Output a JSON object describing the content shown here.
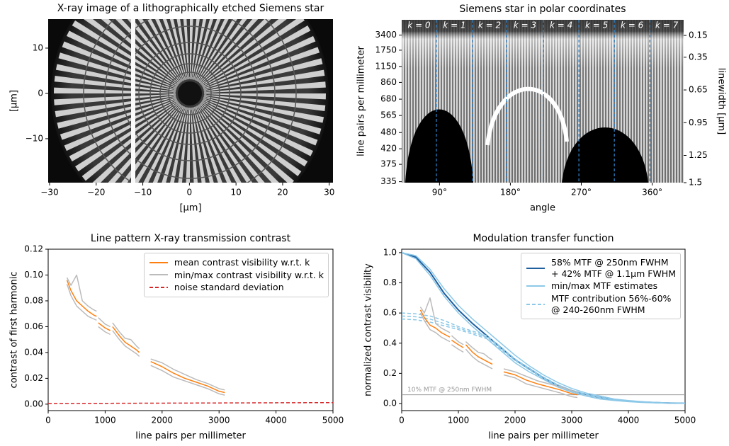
{
  "chart_data": [
    {
      "type": "image",
      "title": "X-ray image of a lithographically etched Siemens star",
      "xlabel": "[µm]",
      "ylabel": "[µm]",
      "xlim": [
        -30.3,
        30.8
      ],
      "ylim": [
        -19.7,
        16.4
      ],
      "xticks": [
        {
          "value": -30,
          "label": "−30"
        },
        {
          "value": -20,
          "label": "−20"
        },
        {
          "value": -10,
          "label": "−10"
        },
        0,
        10,
        20,
        30
      ],
      "yticks": [
        {
          "value": -10,
          "label": "−10"
        },
        0,
        10
      ]
    },
    {
      "type": "polar_image",
      "title": "Siemens star in polar coordinates",
      "xlabel": "angle",
      "ylabel": "line pairs per millimeter",
      "y2label": "linewidth [µm]",
      "xlim": [
        42,
        400
      ],
      "xticks": [
        {
          "value": 90,
          "label": "90°"
        },
        {
          "value": 180,
          "label": "180°"
        },
        {
          "value": 270,
          "label": "270°"
        },
        {
          "value": 360,
          "label": "360°"
        }
      ],
      "ylim": [
        333,
        71429
      ],
      "yscale": "reciprocal",
      "yticks": [
        335,
        375,
        420,
        480,
        565,
        680,
        860,
        1150,
        1750,
        3400
      ],
      "y2lim": [
        1.5,
        0.007
      ],
      "y2ticks": [
        0.15,
        0.35,
        0.65,
        0.95,
        1.25,
        1.5
      ],
      "vlines": {
        "color": "#2f7fc1",
        "values": [
          86,
          132,
          175,
          222,
          267,
          312,
          357
        ]
      },
      "annotations": [
        "k = 0",
        "k = 1",
        "k = 2",
        "k = 3",
        "k = 4",
        "k = 5",
        "k = 6",
        "k = 7"
      ]
    },
    {
      "type": "line",
      "title": "Line pattern X-ray transmission contrast",
      "xlabel": "line pairs per millimeter",
      "ylabel": "contrast of first harmonic",
      "xlim": [
        0,
        5000
      ],
      "xticks": [
        0,
        1000,
        2000,
        3000,
        4000,
        5000
      ],
      "ylim": [
        -0.005,
        0.12
      ],
      "yticks": [
        {
          "value": 0,
          "label": "0.00"
        },
        {
          "value": 0.02,
          "label": "0.02"
        },
        {
          "value": 0.04,
          "label": "0.04"
        },
        {
          "value": 0.06,
          "label": "0.06"
        },
        {
          "value": 0.08,
          "label": "0.08"
        },
        {
          "value": 0.1,
          "label": "0.10"
        },
        {
          "value": 0.12,
          "label": "0.12"
        }
      ],
      "legend": "upper right",
      "series": [
        {
          "name": "mean contrast visibility w.r.t. k",
          "color": "#ff7f0e",
          "x": [
            330,
            400,
            500,
            600,
            700,
            800,
            850,
            860,
            880,
            1000,
            1090,
            1110,
            1130,
            1250,
            1350,
            1450,
            1550,
            1600,
            1700,
            1800,
            2000,
            2200,
            2400,
            2600,
            2800,
            3000,
            3100
          ],
          "values": [
            0.096,
            0.088,
            0.08,
            0.076,
            0.072,
            0.069,
            0.068,
            null,
            0.063,
            0.059,
            0.057,
            null,
            0.06,
            0.053,
            0.048,
            0.045,
            0.042,
            0.04,
            null,
            0.033,
            0.029,
            0.024,
            0.02,
            0.017,
            0.014,
            0.01,
            0.009
          ]
        },
        {
          "name": "min/max contrast visibility w.r.t. k",
          "color": "#bbbbbb",
          "x": [
            330,
            400,
            500,
            600,
            700,
            800,
            850,
            860,
            880,
            1000,
            1090,
            1110,
            1130,
            1250,
            1350,
            1450,
            1550,
            1600,
            1700,
            1800,
            2000,
            2200,
            2400,
            2600,
            2800,
            3000,
            3100
          ],
          "curves": [
            [
              0.093,
              0.084,
              0.076,
              0.072,
              0.068,
              0.066,
              0.065,
              null,
              0.06,
              0.056,
              0.054,
              null,
              0.057,
              0.05,
              0.045,
              0.042,
              0.039,
              0.037,
              null,
              0.03,
              0.026,
              0.021,
              0.018,
              0.015,
              0.012,
              0.008,
              0.007
            ],
            [
              0.098,
              0.092,
              0.1,
              0.08,
              0.076,
              0.073,
              0.072,
              null,
              0.067,
              0.062,
              0.06,
              null,
              0.063,
              0.056,
              0.051,
              0.05,
              0.045,
              0.043,
              null,
              0.035,
              0.032,
              0.027,
              0.023,
              0.019,
              0.016,
              0.012,
              0.011
            ]
          ]
        },
        {
          "name": "noise standard deviation",
          "color": "#d62728",
          "style": "dashed",
          "x": [
            0,
            5000
          ],
          "values": [
            0.0005,
            0.0012
          ]
        }
      ]
    },
    {
      "type": "line",
      "title": "Modulation transfer function",
      "xlabel": "line pairs per millimeter",
      "ylabel": "normalized contrast visibility",
      "xlim": [
        0,
        5000
      ],
      "xticks": [
        0,
        1000,
        2000,
        3000,
        4000,
        5000
      ],
      "ylim": [
        -0.047,
        1.023
      ],
      "yticks": [
        {
          "value": 0,
          "label": "0.0"
        },
        {
          "value": 0.2,
          "label": "0.2"
        },
        {
          "value": 0.4,
          "label": "0.4"
        },
        {
          "value": 0.6,
          "label": "0.6"
        },
        {
          "value": 0.8,
          "label": "0.8"
        },
        {
          "value": 1,
          "label": "1.0"
        }
      ],
      "legend": "upper right",
      "hline": {
        "value": 0.058,
        "label": "10% MTF @ 250nm FWHM",
        "color": "#999999"
      },
      "series": [
        {
          "name": "58% MTF @ 250nm FWHM\n+ 42% MTF @ 1.1µm FWHM",
          "color": "#1f5f9f",
          "x": [
            0,
            250,
            500,
            750,
            1000,
            1250,
            1500,
            1750,
            2000,
            2250,
            2500,
            2750,
            3000,
            3250,
            3500,
            3750,
            4000,
            4250,
            4500,
            4750,
            5000
          ],
          "values": [
            1.0,
            0.97,
            0.87,
            0.73,
            0.62,
            0.53,
            0.45,
            0.37,
            0.29,
            0.23,
            0.17,
            0.12,
            0.085,
            0.06,
            0.04,
            0.025,
            0.015,
            0.01,
            0.006,
            0.003,
            0.002
          ]
        },
        {
          "name": "min/max MTF estimates",
          "color": "#8cc8e8",
          "x": [
            0,
            250,
            500,
            750,
            1000,
            1250,
            1500,
            1750,
            2000,
            2250,
            2500,
            2750,
            3000,
            3250,
            3500,
            3750,
            4000,
            4250,
            4500,
            4750,
            5000
          ],
          "curves": [
            [
              1.0,
              0.96,
              0.85,
              0.71,
              0.6,
              0.51,
              0.43,
              0.35,
              0.27,
              0.21,
              0.16,
              0.11,
              0.075,
              0.05,
              0.03,
              0.02,
              0.012,
              0.007,
              0.004,
              0.002,
              0.001
            ],
            [
              1.0,
              0.98,
              0.89,
              0.76,
              0.65,
              0.56,
              0.48,
              0.4,
              0.32,
              0.25,
              0.19,
              0.14,
              0.1,
              0.07,
              0.05,
              0.03,
              0.02,
              0.012,
              0.007,
              0.004,
              0.002
            ]
          ]
        },
        {
          "name": "MTF contribution 56%-60%\n@ 240-260nm FWHM",
          "color": "#8cc8e8",
          "style": "dashed",
          "x": [
            0,
            250,
            500,
            750,
            1000,
            1250,
            1500,
            1750,
            2000,
            2250,
            2500,
            2750,
            3000,
            3250,
            3500,
            3750,
            4000,
            4250,
            4500,
            4750,
            5000
          ],
          "curves": [
            [
              0.6,
              0.595,
              0.58,
              0.55,
              0.51,
              0.48,
              0.45,
              0.375,
              0.295,
              0.235,
              0.175,
              0.125,
              0.088,
              0.062,
              0.041,
              0.026,
              0.016,
              0.01,
              0.006,
              0.003,
              0.002
            ],
            [
              0.58,
              0.575,
              0.56,
              0.53,
              0.5,
              0.47,
              0.44,
              0.37,
              0.29,
              0.23,
              0.17,
              0.12,
              0.085,
              0.06,
              0.04,
              0.025,
              0.015,
              0.01,
              0.006,
              0.003,
              0.002
            ],
            [
              0.56,
              0.555,
              0.54,
              0.515,
              0.49,
              0.46,
              0.43,
              0.36,
              0.285,
              0.225,
              0.165,
              0.115,
              0.082,
              0.058,
              0.038,
              0.024,
              0.014,
              0.009,
              0.005,
              0.003,
              0.002
            ]
          ]
        },
        {
          "color": "#bbbbbb",
          "x": [
            330,
            400,
            500,
            600,
            700,
            800,
            850,
            860,
            880,
            1000,
            1090,
            1110,
            1130,
            1250,
            1350,
            1450,
            1550,
            1600,
            1700,
            1800,
            2000,
            2200,
            2400,
            2600,
            2800,
            3000,
            3100
          ],
          "curves": [
            [
              0.6,
              0.55,
              0.49,
              0.47,
              0.44,
              0.42,
              0.41,
              null,
              0.39,
              0.36,
              0.34,
              null,
              0.36,
              0.31,
              0.28,
              0.26,
              0.24,
              0.23,
              null,
              0.19,
              0.17,
              0.13,
              0.11,
              0.09,
              0.07,
              0.045,
              0.04
            ],
            [
              0.64,
              0.6,
              0.7,
              0.53,
              0.5,
              0.48,
              0.47,
              null,
              0.45,
              0.41,
              0.39,
              null,
              0.41,
              0.37,
              0.34,
              0.33,
              0.3,
              0.29,
              null,
              0.23,
              0.21,
              0.18,
              0.15,
              0.13,
              0.11,
              0.085,
              0.075
            ]
          ]
        },
        {
          "color": "#ff7f0e",
          "x": [
            330,
            400,
            500,
            600,
            700,
            800,
            850,
            860,
            880,
            1000,
            1090,
            1110,
            1130,
            1250,
            1350,
            1450,
            1550,
            1600,
            1700,
            1800,
            2000,
            2200,
            2400,
            2600,
            2800,
            3000,
            3100
          ],
          "values": [
            0.62,
            0.57,
            0.52,
            0.5,
            0.47,
            0.45,
            0.44,
            null,
            0.42,
            0.39,
            0.37,
            null,
            0.39,
            0.34,
            0.31,
            0.29,
            0.27,
            0.26,
            null,
            0.21,
            0.19,
            0.155,
            0.13,
            0.11,
            0.09,
            0.065,
            0.058
          ]
        }
      ]
    }
  ]
}
